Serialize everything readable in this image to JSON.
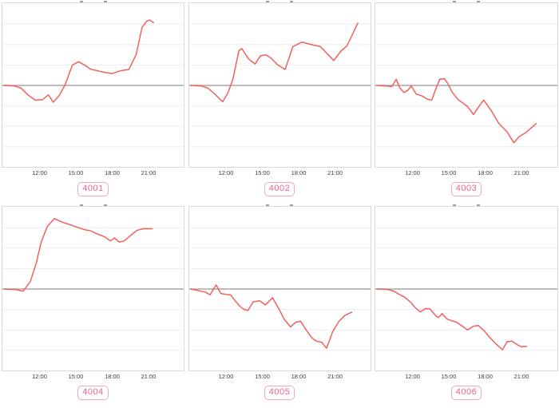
{
  "colors": {
    "series_line": "#f1605d",
    "zero_line": "#a7a7a7",
    "gridline": "#ededed",
    "panel_border": "#d9d9d9",
    "tick_text": "#3c3c3c",
    "badge_text": "#ee6388",
    "badge_border": "#f4a7c0",
    "cropped_title_fragment": "#9e9e9e",
    "background": "#ffffff"
  },
  "layout": {
    "grid": "2 rows x 3 columns of line-chart panels",
    "cropped_chart_titles": "only bottom pixels of each chart title are visible at the top edge of each panel"
  },
  "chart_data": {
    "type": "line",
    "grid": true,
    "legend": false,
    "x_axis": {
      "tick_labels": [
        "12:00",
        "15:00",
        "18:00",
        "21:00"
      ],
      "tick_hours": [
        12,
        15,
        18,
        21
      ],
      "range_hours": [
        9,
        24
      ]
    },
    "y_axis": {
      "tick_labels": [],
      "range_units": [
        -4.15,
        4.15
      ],
      "zero_line": true,
      "note": "no y tick labels visible; point values are in gridline units relative to the gray zero line"
    },
    "charts": [
      {
        "id": "4001",
        "points": [
          [
            9,
            0
          ],
          [
            9.9,
            -0.03
          ],
          [
            10.4,
            -0.12
          ],
          [
            11.0,
            -0.46
          ],
          [
            11.6,
            -0.72
          ],
          [
            12.2,
            -0.7
          ],
          [
            12.7,
            -0.46
          ],
          [
            13.1,
            -0.82
          ],
          [
            13.6,
            -0.5
          ],
          [
            14.1,
            0.05
          ],
          [
            14.7,
            1.0
          ],
          [
            15.2,
            1.16
          ],
          [
            15.7,
            1.0
          ],
          [
            16.2,
            0.8
          ],
          [
            17.1,
            0.67
          ],
          [
            18.0,
            0.58
          ],
          [
            18.7,
            0.72
          ],
          [
            19.4,
            0.78
          ],
          [
            20.0,
            1.5
          ],
          [
            20.5,
            2.85
          ],
          [
            20.9,
            3.15
          ],
          [
            21.15,
            3.2
          ],
          [
            21.45,
            3.07
          ]
        ]
      },
      {
        "id": "4002",
        "points": [
          [
            9,
            0
          ],
          [
            9.9,
            -0.03
          ],
          [
            10.4,
            -0.12
          ],
          [
            11.0,
            -0.42
          ],
          [
            11.65,
            -0.8
          ],
          [
            12.1,
            -0.35
          ],
          [
            12.5,
            0.3
          ],
          [
            13.0,
            1.7
          ],
          [
            13.25,
            1.8
          ],
          [
            13.8,
            1.3
          ],
          [
            14.35,
            1.05
          ],
          [
            14.8,
            1.45
          ],
          [
            15.25,
            1.5
          ],
          [
            15.7,
            1.33
          ],
          [
            16.2,
            1.02
          ],
          [
            16.85,
            0.78
          ],
          [
            17.5,
            1.9
          ],
          [
            18.25,
            2.12
          ],
          [
            18.8,
            2.03
          ],
          [
            19.8,
            1.9
          ],
          [
            20.9,
            1.22
          ],
          [
            21.5,
            1.68
          ],
          [
            22.0,
            1.93
          ],
          [
            22.9,
            3.05
          ]
        ]
      },
      {
        "id": "4003",
        "points": [
          [
            9,
            0
          ],
          [
            10.25,
            -0.05
          ],
          [
            10.6,
            0.3
          ],
          [
            10.9,
            -0.12
          ],
          [
            11.25,
            -0.35
          ],
          [
            11.6,
            -0.22
          ],
          [
            11.85,
            -0.02
          ],
          [
            12.25,
            -0.42
          ],
          [
            12.7,
            -0.5
          ],
          [
            13.2,
            -0.68
          ],
          [
            13.55,
            -0.72
          ],
          [
            13.9,
            -0.15
          ],
          [
            14.2,
            0.3
          ],
          [
            14.6,
            0.33
          ],
          [
            14.95,
            0.02
          ],
          [
            15.2,
            -0.3
          ],
          [
            15.7,
            -0.67
          ],
          [
            16.2,
            -0.9
          ],
          [
            16.5,
            -1.02
          ],
          [
            17.0,
            -1.42
          ],
          [
            17.55,
            -0.95
          ],
          [
            17.85,
            -0.72
          ],
          [
            18.5,
            -1.25
          ],
          [
            19.1,
            -1.85
          ],
          [
            19.8,
            -2.28
          ],
          [
            20.35,
            -2.8
          ],
          [
            20.8,
            -2.5
          ],
          [
            21.3,
            -2.33
          ],
          [
            22.2,
            -1.87
          ]
        ]
      },
      {
        "id": "4004",
        "points": [
          [
            9,
            0
          ],
          [
            10.0,
            -0.03
          ],
          [
            10.6,
            -0.1
          ],
          [
            11.2,
            0.38
          ],
          [
            11.7,
            1.3
          ],
          [
            12.1,
            2.3
          ],
          [
            12.6,
            3.05
          ],
          [
            13.2,
            3.45
          ],
          [
            13.8,
            3.28
          ],
          [
            14.5,
            3.15
          ],
          [
            15.2,
            3.0
          ],
          [
            15.75,
            2.9
          ],
          [
            16.2,
            2.85
          ],
          [
            16.75,
            2.7
          ],
          [
            17.4,
            2.55
          ],
          [
            17.85,
            2.35
          ],
          [
            18.2,
            2.5
          ],
          [
            18.6,
            2.3
          ],
          [
            19.0,
            2.35
          ],
          [
            19.55,
            2.62
          ],
          [
            20.1,
            2.88
          ],
          [
            20.6,
            2.95
          ],
          [
            21.35,
            2.95
          ]
        ]
      },
      {
        "id": "4005",
        "points": [
          [
            9,
            0
          ],
          [
            10.2,
            -0.15
          ],
          [
            10.6,
            -0.28
          ],
          [
            11.1,
            0.2
          ],
          [
            11.5,
            -0.22
          ],
          [
            12.0,
            -0.27
          ],
          [
            12.3,
            -0.28
          ],
          [
            12.7,
            -0.58
          ],
          [
            13.1,
            -0.85
          ],
          [
            13.45,
            -1.0
          ],
          [
            13.75,
            -1.05
          ],
          [
            14.2,
            -0.62
          ],
          [
            14.75,
            -0.58
          ],
          [
            15.2,
            -0.78
          ],
          [
            15.8,
            -0.42
          ],
          [
            16.4,
            -1.05
          ],
          [
            16.8,
            -1.5
          ],
          [
            17.3,
            -1.85
          ],
          [
            17.75,
            -1.62
          ],
          [
            18.15,
            -1.58
          ],
          [
            18.6,
            -2.0
          ],
          [
            19.1,
            -2.4
          ],
          [
            19.45,
            -2.55
          ],
          [
            19.9,
            -2.6
          ],
          [
            20.3,
            -2.9
          ],
          [
            20.8,
            -2.1
          ],
          [
            21.3,
            -1.6
          ],
          [
            21.8,
            -1.3
          ],
          [
            22.4,
            -1.13
          ]
        ]
      },
      {
        "id": "4006",
        "points": [
          [
            9,
            0
          ],
          [
            9.9,
            -0.02
          ],
          [
            10.4,
            -0.1
          ],
          [
            10.9,
            -0.28
          ],
          [
            11.3,
            -0.4
          ],
          [
            11.8,
            -0.65
          ],
          [
            12.2,
            -0.92
          ],
          [
            12.6,
            -1.12
          ],
          [
            13.0,
            -0.96
          ],
          [
            13.4,
            -0.97
          ],
          [
            13.9,
            -1.32
          ],
          [
            14.1,
            -1.4
          ],
          [
            14.4,
            -1.2
          ],
          [
            14.8,
            -1.47
          ],
          [
            15.2,
            -1.55
          ],
          [
            15.6,
            -1.62
          ],
          [
            16.1,
            -1.82
          ],
          [
            16.5,
            -2.0
          ],
          [
            17.0,
            -1.82
          ],
          [
            17.4,
            -1.78
          ],
          [
            17.9,
            -2.05
          ],
          [
            18.4,
            -2.4
          ],
          [
            18.9,
            -2.7
          ],
          [
            19.4,
            -2.97
          ],
          [
            19.8,
            -2.58
          ],
          [
            20.2,
            -2.55
          ],
          [
            20.7,
            -2.75
          ],
          [
            21.0,
            -2.82
          ],
          [
            21.4,
            -2.8
          ]
        ]
      }
    ]
  }
}
